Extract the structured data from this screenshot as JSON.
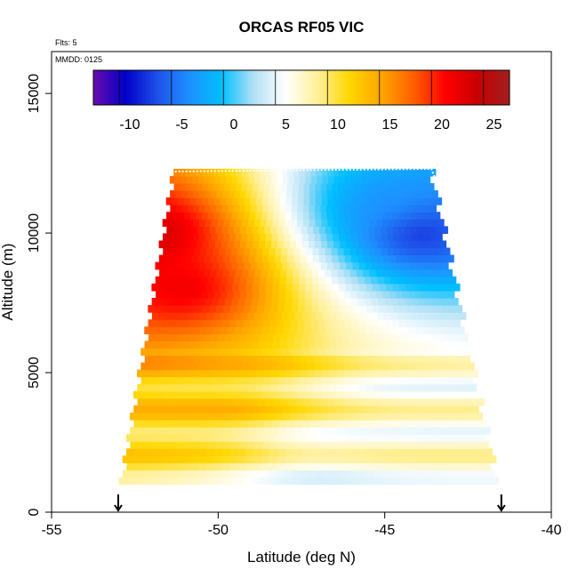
{
  "page": {
    "flights_note": "Flts: 5",
    "date_note": "MMDD: 0125"
  },
  "chart_data": {
    "type": "heatmap",
    "title": "ORCAS RF05 VIC",
    "xlabel": "Latitude (deg N)",
    "ylabel": "Altitude (m)",
    "xlim": [
      -55,
      -40
    ],
    "ylim": [
      0,
      16500
    ],
    "x_ticks": [
      -55,
      -50,
      -45,
      -40
    ],
    "y_ticks": [
      0,
      5000,
      10000,
      15000
    ],
    "colorbar": {
      "range": [
        -13.5,
        26.5
      ],
      "ticks": [
        -10,
        -5,
        0,
        5,
        10,
        15,
        20,
        25
      ],
      "colors": [
        "#6a0dad",
        "#0000c8",
        "#1e50e8",
        "#1e90ff",
        "#00bfff",
        "#b0e0f5",
        "#ffffff",
        "#fff09a",
        "#ffd700",
        "#ffa500",
        "#ff6000",
        "#ff0000",
        "#c80000",
        "#a02020"
      ]
    },
    "field": {
      "lat_range": [
        -53.0,
        -41.5
      ],
      "alt_top": 12300,
      "alt_bottom": 1000,
      "description_values": [
        {
          "alt": 10000,
          "lat": -52,
          "value": 24
        },
        {
          "alt": 8000,
          "lat": -51,
          "value": 22
        },
        {
          "alt": 10000,
          "lat": -44,
          "value": -10
        },
        {
          "alt": 11000,
          "lat": -45,
          "value": -4
        },
        {
          "alt": 4000,
          "lat": -50,
          "value": 12
        },
        {
          "alt": 4000,
          "lat": -44,
          "value": 6
        },
        {
          "alt": 1500,
          "lat": -47,
          "value": 5
        }
      ]
    },
    "markers": [
      {
        "lat": -53.0,
        "label": "arrow"
      },
      {
        "lat": -41.5,
        "label": "arrow"
      }
    ],
    "grid": false
  }
}
